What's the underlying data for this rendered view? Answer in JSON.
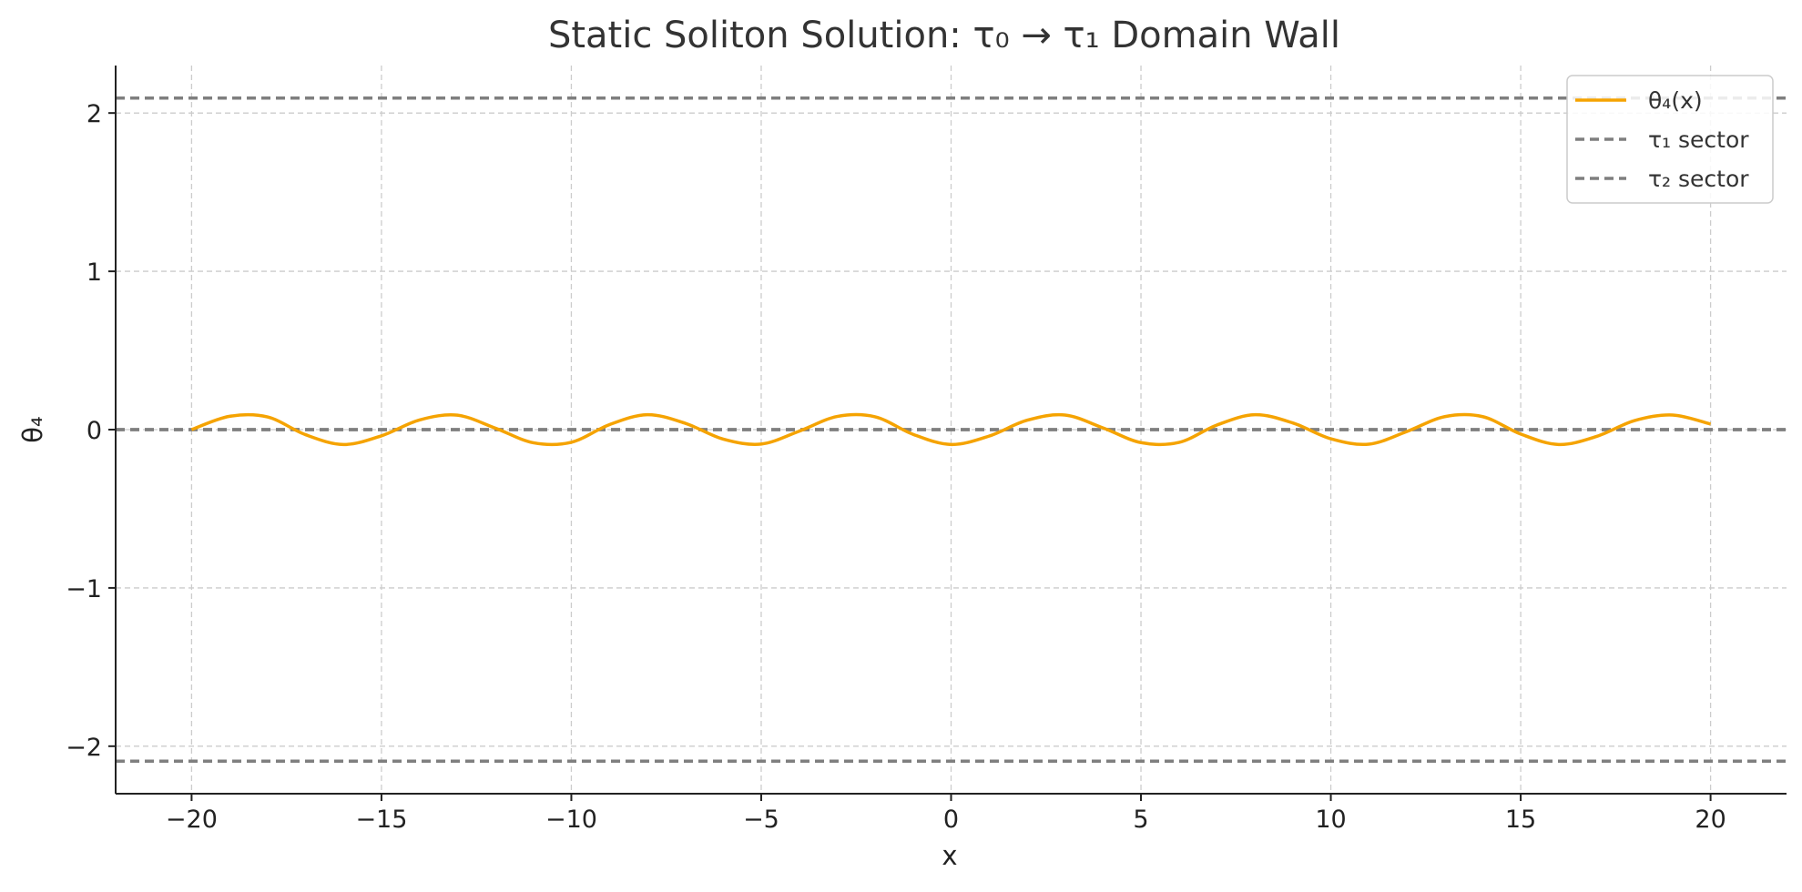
{
  "chart_data": {
    "type": "line",
    "title": "Static Soliton Solution: τ₀ → τ₁ Domain Wall",
    "xlabel": "x",
    "ylabel": "θ₄",
    "xlim": [
      -22,
      22
    ],
    "ylim": [
      -2.3,
      2.3
    ],
    "xticks": [
      -20,
      -15,
      -10,
      -5,
      0,
      5,
      10,
      15,
      20
    ],
    "yticks": [
      -2,
      -1,
      0,
      1,
      2
    ],
    "xtick_labels": [
      "−20",
      "−15",
      "−10",
      "−5",
      "0",
      "5",
      "10",
      "15",
      "20"
    ],
    "ytick_labels": [
      "−2",
      "−1",
      "0",
      "1",
      "2"
    ],
    "grid": true,
    "legend_position": "top-right",
    "series": [
      {
        "name": "θ₄(x)",
        "color": "#f5a300",
        "style": "solid",
        "x": [
          -20,
          -19,
          -18,
          -17,
          -16,
          -15,
          -14,
          -13,
          -12,
          -11,
          -10,
          -9,
          -8,
          -7,
          -6,
          -5,
          -4,
          -3,
          -2,
          -1,
          0,
          1,
          2,
          3,
          4,
          5,
          6,
          7,
          8,
          9,
          10,
          11,
          12,
          13,
          14,
          15,
          16,
          17,
          18,
          19,
          20
        ],
        "y": [
          0.0,
          0.084,
          0.08,
          -0.032,
          -0.094,
          -0.039,
          0.061,
          0.091,
          0.009,
          -0.083,
          -0.08,
          0.031,
          0.094,
          0.04,
          -0.06,
          -0.091,
          -0.01,
          0.083,
          0.081,
          -0.03,
          -0.094,
          -0.041,
          0.059,
          0.092,
          0.011,
          -0.082,
          -0.081,
          0.029,
          0.094,
          0.042,
          -0.058,
          -0.092,
          -0.012,
          0.082,
          0.082,
          -0.028,
          -0.094,
          -0.043,
          0.057,
          0.092,
          0.035
        ]
      },
      {
        "name": "τ₁ sector",
        "color": "#7f7f7f",
        "style": "dashed",
        "hlines": [
          0.0,
          2.0944,
          -2.0944
        ]
      },
      {
        "name": "τ₂ sector",
        "color": "#7f7f7f",
        "style": "dashed",
        "hlines": [
          0.0,
          2.0944,
          -2.0944
        ]
      }
    ]
  }
}
